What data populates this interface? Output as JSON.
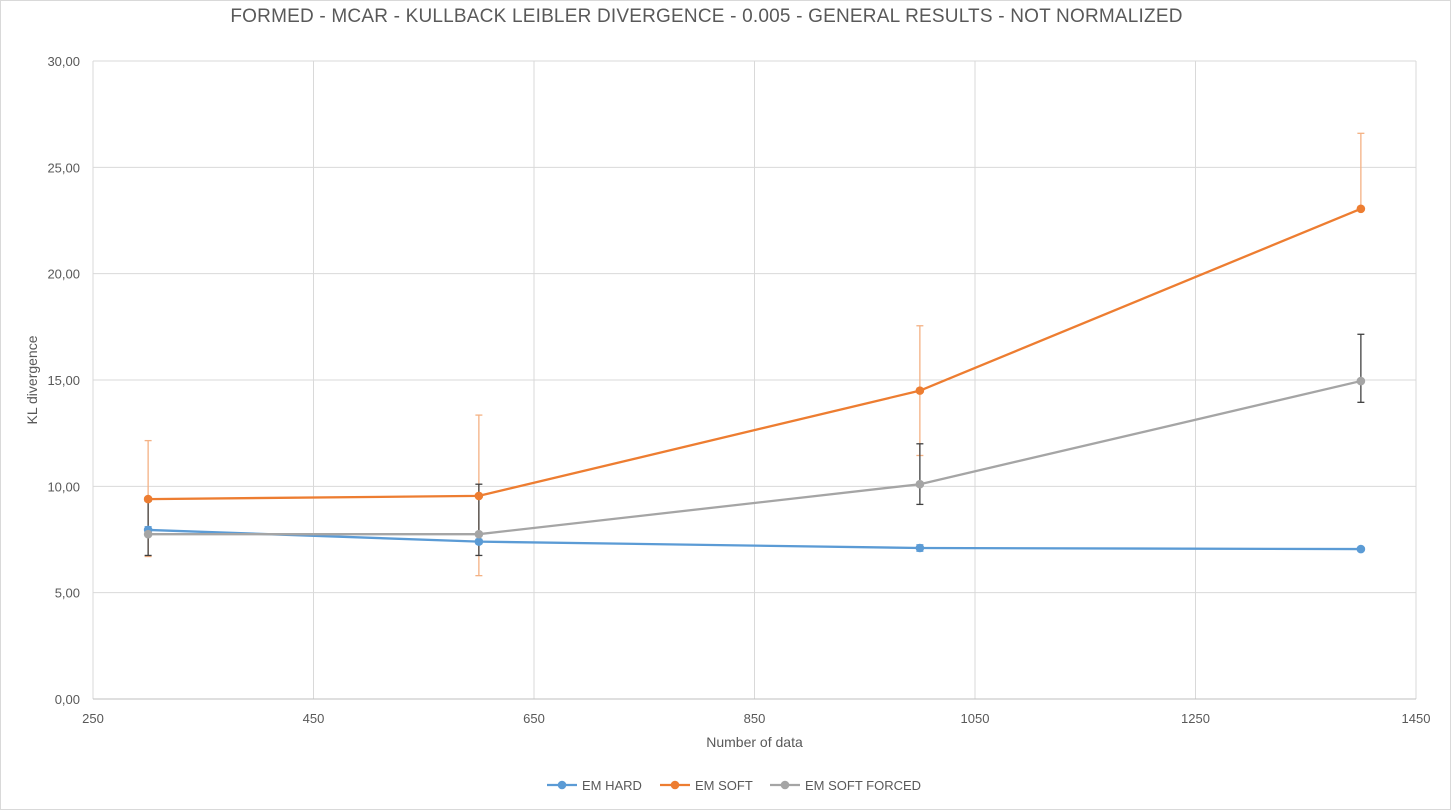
{
  "chart_data": {
    "type": "line",
    "title": "FORMED - MCAR - KULLBACK LEIBLER DIVERGENCE - 0.005 - GENERAL RESULTS - NOT NORMALIZED",
    "xlabel": "Number of data",
    "ylabel": "KL divergence",
    "xlim": [
      250,
      1450
    ],
    "ylim": [
      0,
      30
    ],
    "x_ticks": [
      "250",
      "450",
      "650",
      "850",
      "1050",
      "1250",
      "1450"
    ],
    "y_ticks": [
      "0,00",
      "5,00",
      "10,00",
      "15,00",
      "20,00",
      "25,00",
      "30,00"
    ],
    "grid": true,
    "legend_position": "bottom",
    "series": [
      {
        "name": "EM HARD",
        "color": "#5b9bd5",
        "error_color": "#5b9bd5",
        "x": [
          300,
          600,
          1000,
          1400
        ],
        "y": [
          7.95,
          7.4,
          7.1,
          7.05
        ],
        "err_low": [
          7.75,
          7.3,
          6.95,
          7.0
        ],
        "err_high": [
          8.1,
          7.5,
          7.25,
          7.1
        ]
      },
      {
        "name": "EM SOFT",
        "color": "#ed7d31",
        "error_color": "#f4b183",
        "x": [
          300,
          600,
          1000,
          1400
        ],
        "y": [
          9.4,
          9.55,
          14.5,
          23.05
        ],
        "err_low": [
          6.7,
          5.8,
          11.45,
          23.05
        ],
        "err_high": [
          12.15,
          13.35,
          17.55,
          26.6
        ]
      },
      {
        "name": "EM SOFT FORCED",
        "color": "#a5a5a5",
        "error_color": "#404040",
        "x": [
          300,
          600,
          1000,
          1400
        ],
        "y": [
          7.75,
          7.75,
          10.1,
          14.95
        ],
        "err_low": [
          6.75,
          6.75,
          9.15,
          13.95
        ],
        "err_high": [
          9.3,
          10.1,
          12.0,
          17.15
        ]
      }
    ]
  }
}
